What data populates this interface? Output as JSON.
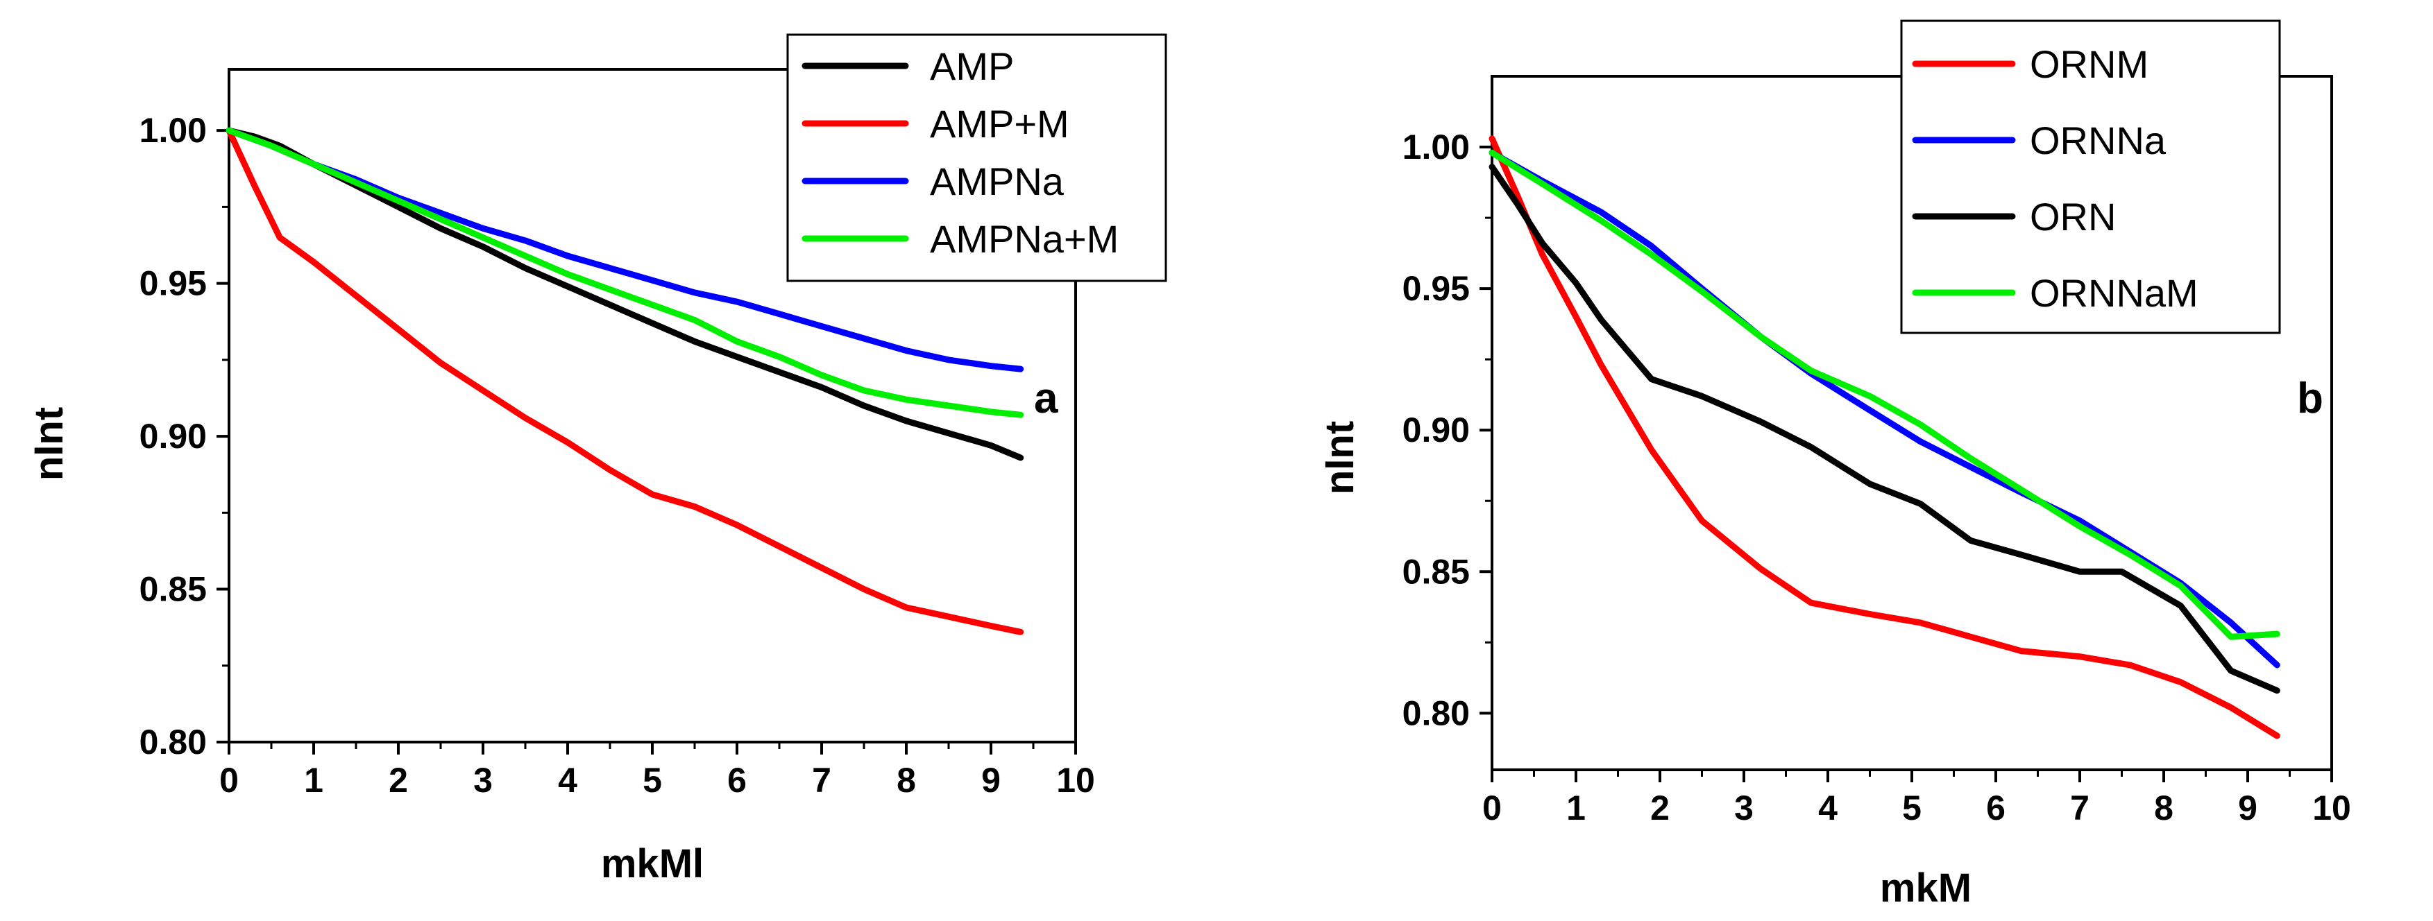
{
  "chart_data": [
    {
      "type": "line",
      "panel_label": "a",
      "xlabel": "mkMl",
      "ylabel": "nInt",
      "xlim": [
        0,
        10
      ],
      "ylim": [
        0.8,
        1.02
      ],
      "xticks": [
        0,
        1,
        2,
        3,
        4,
        5,
        6,
        7,
        8,
        9,
        10
      ],
      "yticks": [
        0.8,
        0.85,
        0.9,
        0.95,
        1.0
      ],
      "xtick_labels": [
        "0",
        "1",
        "2",
        "3",
        "4",
        "5",
        "6",
        "7",
        "8",
        "9",
        "10"
      ],
      "ytick_labels": [
        "0.80",
        "0.85",
        "0.90",
        "0.95",
        "1.00"
      ],
      "legend_position": "top-right",
      "series": [
        {
          "name": "AMP",
          "color": "#000000",
          "x": [
            0,
            0.3,
            0.6,
            1.0,
            1.5,
            2.0,
            2.5,
            3.0,
            3.5,
            4.0,
            4.5,
            5.0,
            5.5,
            6.0,
            6.5,
            7.0,
            7.5,
            8.0,
            8.5,
            9.0,
            9.35
          ],
          "y": [
            1.0,
            0.998,
            0.995,
            0.989,
            0.982,
            0.975,
            0.968,
            0.962,
            0.955,
            0.949,
            0.943,
            0.937,
            0.931,
            0.926,
            0.921,
            0.916,
            0.91,
            0.905,
            0.901,
            0.897,
            0.893
          ]
        },
        {
          "name": "AMP+M",
          "color": "#ff0000",
          "x": [
            0,
            0.3,
            0.6,
            1.0,
            1.5,
            2.0,
            2.5,
            3.0,
            3.5,
            4.0,
            4.5,
            5.0,
            5.5,
            6.0,
            6.5,
            7.0,
            7.5,
            8.0,
            8.5,
            9.0,
            9.35
          ],
          "y": [
            1.0,
            0.982,
            0.965,
            0.957,
            0.946,
            0.935,
            0.924,
            0.915,
            0.906,
            0.898,
            0.889,
            0.881,
            0.877,
            0.871,
            0.864,
            0.857,
            0.85,
            0.844,
            0.841,
            0.838,
            0.836
          ]
        },
        {
          "name": "AMPNa",
          "color": "#0000ff",
          "x": [
            0,
            0.5,
            1.0,
            1.5,
            2.0,
            2.5,
            3.0,
            3.5,
            4.0,
            4.5,
            5.0,
            5.5,
            6.0,
            6.5,
            7.0,
            7.5,
            8.0,
            8.5,
            9.0,
            9.35
          ],
          "y": [
            1.0,
            0.995,
            0.989,
            0.984,
            0.978,
            0.973,
            0.968,
            0.964,
            0.959,
            0.955,
            0.951,
            0.947,
            0.944,
            0.94,
            0.936,
            0.932,
            0.928,
            0.925,
            0.923,
            0.922
          ]
        },
        {
          "name": "AMPNa+M",
          "color": "#00ee00",
          "x": [
            0,
            0.5,
            1.0,
            1.5,
            2.0,
            2.5,
            3.0,
            3.5,
            4.0,
            4.5,
            5.0,
            5.5,
            6.0,
            6.5,
            7.0,
            7.5,
            8.0,
            8.5,
            9.0,
            9.35
          ],
          "y": [
            1.0,
            0.995,
            0.989,
            0.983,
            0.977,
            0.971,
            0.965,
            0.959,
            0.953,
            0.948,
            0.943,
            0.938,
            0.931,
            0.926,
            0.92,
            0.915,
            0.912,
            0.91,
            0.908,
            0.907
          ]
        }
      ]
    },
    {
      "type": "line",
      "panel_label": "b",
      "xlabel": "mkM",
      "ylabel": "nInt",
      "xlim": [
        0,
        10
      ],
      "ylim": [
        0.78,
        1.025
      ],
      "xticks": [
        0,
        1,
        2,
        3,
        4,
        5,
        6,
        7,
        8,
        9,
        10
      ],
      "yticks": [
        0.8,
        0.85,
        0.9,
        0.95,
        1.0
      ],
      "xtick_labels": [
        "0",
        "1",
        "2",
        "3",
        "4",
        "5",
        "6",
        "7",
        "8",
        "9",
        "10"
      ],
      "ytick_labels": [
        "0.80",
        "0.85",
        "0.90",
        "0.95",
        "1.00"
      ],
      "legend_position": "top-right",
      "series": [
        {
          "name": "ORNM",
          "color": "#ff0000",
          "x": [
            0,
            0.3,
            0.6,
            1.0,
            1.3,
            1.9,
            2.5,
            3.2,
            3.8,
            4.5,
            5.1,
            5.7,
            6.3,
            7.0,
            7.6,
            8.2,
            8.8,
            9.35
          ],
          "y": [
            1.003,
            0.983,
            0.962,
            0.94,
            0.923,
            0.893,
            0.868,
            0.851,
            0.839,
            0.835,
            0.832,
            0.827,
            0.822,
            0.82,
            0.817,
            0.811,
            0.802,
            0.792
          ]
        },
        {
          "name": "ORNNa",
          "color": "#0000ff",
          "x": [
            0,
            0.6,
            1.3,
            1.9,
            2.5,
            3.2,
            3.8,
            4.5,
            5.1,
            5.7,
            6.3,
            7.0,
            7.6,
            8.2,
            8.8,
            9.35
          ],
          "y": [
            0.998,
            0.988,
            0.977,
            0.965,
            0.95,
            0.933,
            0.92,
            0.907,
            0.896,
            0.887,
            0.878,
            0.868,
            0.857,
            0.846,
            0.832,
            0.817
          ]
        },
        {
          "name": "ORN",
          "color": "#000000",
          "x": [
            0,
            0.3,
            0.6,
            1.0,
            1.3,
            1.9,
            2.5,
            3.2,
            3.8,
            4.5,
            5.1,
            5.7,
            6.3,
            7.0,
            7.5,
            8.2,
            8.8,
            9.35
          ],
          "y": [
            0.993,
            0.98,
            0.966,
            0.952,
            0.939,
            0.918,
            0.912,
            0.903,
            0.894,
            0.881,
            0.874,
            0.861,
            0.856,
            0.85,
            0.85,
            0.838,
            0.815,
            0.808
          ]
        },
        {
          "name": "ORNNaM",
          "color": "#00ee00",
          "x": [
            0,
            0.6,
            1.3,
            1.9,
            2.5,
            3.2,
            3.8,
            4.5,
            5.1,
            5.7,
            6.3,
            7.0,
            7.6,
            8.2,
            8.8,
            9.35
          ],
          "y": [
            0.998,
            0.987,
            0.974,
            0.962,
            0.949,
            0.933,
            0.921,
            0.912,
            0.902,
            0.89,
            0.879,
            0.866,
            0.856,
            0.845,
            0.827,
            0.828
          ]
        }
      ]
    }
  ]
}
